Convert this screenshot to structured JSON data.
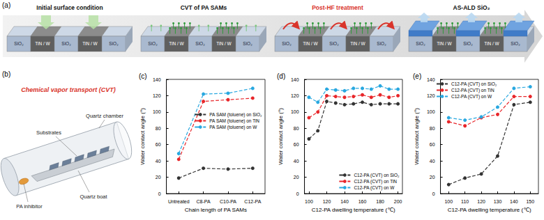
{
  "schematic": {
    "title": "(a)",
    "steps": [
      "Initial surface condition",
      "CVT of PA SAMs",
      "Post-HF treatment",
      "AS-ALD SiO₂"
    ],
    "strips": [
      "SiO₂",
      "TiN / W",
      "SiO₂",
      "TiN / W",
      "SiO₂"
    ]
  },
  "cvt": {
    "title": "(b)",
    "heading": "Chemical vapor transport (CVT)",
    "chamber": "Quartz chamber",
    "substrates": "Substrates",
    "inhibitor": "PA inhibitor",
    "boat": "Quartz boat"
  },
  "chart_data": [
    {
      "type": "line",
      "title": "(c)",
      "xlabel": "Chain length of PA SAMs",
      "ylabel": "Water contact angle (°)",
      "categories": [
        "Untreated",
        "C8-PA",
        "C10-PA",
        "C12-PA"
      ],
      "ylim": [
        0,
        140
      ],
      "yticks": [
        0,
        20,
        40,
        60,
        80,
        100,
        120,
        140
      ],
      "grid": false,
      "legend": "center right",
      "marker": "circle",
      "line_style": "dashed",
      "series": [
        {
          "name": "PA SAM (toluene) on SiO₂",
          "color": "#333333",
          "values": [
            19,
            31,
            30,
            31
          ]
        },
        {
          "name": "PA SAM (toluene) on TiN",
          "color": "#e8262a",
          "values": [
            42,
            113,
            115,
            117
          ]
        },
        {
          "name": "PA SAM (toluene) on W",
          "color": "#29a8e0",
          "values": [
            49,
            122,
            123,
            129
          ]
        }
      ]
    },
    {
      "type": "line",
      "title": "(d)",
      "xlabel": "C12-PA dwelling temperature (℃)",
      "ylabel": "Water contact angle (°)",
      "x": [
        100,
        110,
        120,
        130,
        140,
        150,
        160,
        170,
        180,
        190,
        200
      ],
      "xlim": [
        95,
        205
      ],
      "xticks": [
        100,
        120,
        140,
        160,
        180,
        200
      ],
      "ylim": [
        0,
        140
      ],
      "yticks": [
        0,
        20,
        40,
        60,
        80,
        100,
        120,
        140
      ],
      "grid": false,
      "legend": "lower right",
      "marker": "circle",
      "line_style": "dashed",
      "series": [
        {
          "name": "C12-PA (CVT) on SiO₂",
          "color": "#333333",
          "values": [
            67,
            77,
            113,
            111,
            109,
            110,
            112,
            109,
            110,
            110,
            110
          ]
        },
        {
          "name": "C12-PA (CVT) on TiN",
          "color": "#e8262a",
          "values": [
            93,
            100,
            120,
            119,
            118,
            119,
            121,
            118,
            121,
            118,
            120
          ]
        },
        {
          "name": "C12-PA (CVT) on W",
          "color": "#29a8e0",
          "values": [
            118,
            112,
            128,
            127,
            126,
            129,
            129,
            128,
            132,
            128,
            128
          ]
        }
      ]
    },
    {
      "type": "line",
      "title": "(e)",
      "xlabel": "C12-PA dwelling temperature (℃)",
      "ylabel": "Water contact angle (°)",
      "x": [
        100,
        110,
        120,
        130,
        140,
        150
      ],
      "xlim": [
        95,
        155
      ],
      "xticks": [
        100,
        110,
        120,
        130,
        140,
        150
      ],
      "ylim": [
        0,
        140
      ],
      "yticks": [
        0,
        20,
        40,
        60,
        80,
        100,
        120,
        140
      ],
      "grid": false,
      "legend": "upper left",
      "marker": "circle",
      "line_style": "dashed",
      "series": [
        {
          "name": "C12-PA (CVT) on SiO₂",
          "color": "#333333",
          "values": [
            11,
            19,
            24,
            46,
            109,
            112
          ]
        },
        {
          "name": "C12-PA (CVT) on TiN",
          "color": "#e8262a",
          "values": [
            88,
            83,
            93,
            97,
            119,
            119
          ]
        },
        {
          "name": "C12-PA (CVT) on W",
          "color": "#29a8e0",
          "values": [
            93,
            90,
            94,
            106,
            129,
            131
          ]
        }
      ]
    }
  ]
}
